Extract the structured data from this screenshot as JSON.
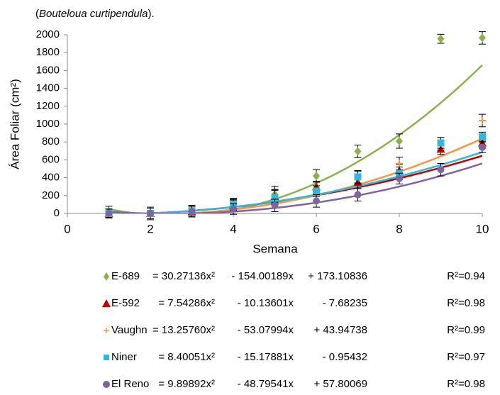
{
  "chart_data": {
    "type": "scatter",
    "subtitle_parts": [
      "(",
      "Bouteloua curtipendula",
      ")."
    ],
    "x_label": "Semana",
    "y_label": "Área Foliar (cm²)",
    "xlim": [
      0,
      10
    ],
    "xticks": [
      0,
      2,
      4,
      6,
      8,
      10
    ],
    "ylim": [
      0,
      2000
    ],
    "yticks": [
      0,
      200,
      400,
      600,
      800,
      1000,
      1200,
      1400,
      1600,
      1800,
      2000
    ],
    "x": [
      1,
      2,
      3,
      4,
      5,
      6,
      7,
      8,
      9,
      10
    ],
    "series": [
      {
        "name": "E-689",
        "color": "#8db04e",
        "marker": "diamond",
        "values": [
          20,
          0,
          20,
          100,
          215,
          420,
          695,
          810,
          1955,
          1965
        ],
        "errors": [
          60,
          70,
          60,
          70,
          90,
          70,
          70,
          80,
          50,
          70
        ],
        "fit": [
          {
            "value": 30.27136,
            "label": "= 30.27136x²"
          },
          {
            "value": -154.00189,
            "label": "- 154.00189x"
          },
          {
            "value": 173.10836,
            "label": "+ 173.10836"
          }
        ],
        "r2": {
          "value": 0.94,
          "label": "R²=0.94"
        }
      },
      {
        "name": "E-592",
        "color": "#c00000",
        "marker": "triangle",
        "values": [
          0,
          0,
          20,
          90,
          190,
          300,
          350,
          480,
          720,
          790
        ],
        "errors": [
          50,
          60,
          60,
          60,
          80,
          60,
          70,
          70,
          60,
          60
        ],
        "fit": [
          {
            "value": 7.54286,
            "label": "= 7.54286x²"
          },
          {
            "value": -10.13601,
            "label": "- 10.13601x"
          },
          {
            "value": -7.68235,
            "label": "- 7.68235"
          }
        ],
        "r2": {
          "value": 0.98,
          "label": "R²=0.98"
        }
      },
      {
        "name": "Vaughn",
        "color": "#f79646",
        "marker": "plus",
        "values": [
          0,
          0,
          20,
          90,
          180,
          250,
          400,
          560,
          780,
          1040
        ],
        "errors": [
          50,
          60,
          60,
          60,
          80,
          60,
          70,
          70,
          70,
          70
        ],
        "fit": [
          {
            "value": 13.2576,
            "label": "= 13.25760x²"
          },
          {
            "value": -53.07994,
            "label": "- 53.07994x"
          },
          {
            "value": 43.94738,
            "label": "+ 43.94738"
          }
        ],
        "r2": {
          "value": 0.99,
          "label": "R²=0.99"
        }
      },
      {
        "name": "Niner",
        "color": "#33b8d8",
        "marker": "square",
        "values": [
          0,
          0,
          30,
          100,
          180,
          250,
          410,
          450,
          790,
          860
        ],
        "errors": [
          50,
          60,
          60,
          60,
          80,
          60,
          70,
          70,
          60,
          50
        ],
        "fit": [
          {
            "value": 8.40051,
            "label": "= 8.40051x²"
          },
          {
            "value": -15.17881,
            "label": "- 15.17881x"
          },
          {
            "value": -0.95432,
            "label": "- 0.95432"
          }
        ],
        "r2": {
          "value": 0.97,
          "label": "R²=0.97"
        }
      },
      {
        "name": "El Reno",
        "color": "#8064a2",
        "marker": "circle",
        "values": [
          0,
          0,
          20,
          50,
          90,
          140,
          210,
          390,
          490,
          740
        ],
        "errors": [
          50,
          60,
          60,
          60,
          70,
          70,
          70,
          60,
          70,
          60
        ],
        "fit": [
          {
            "value": 9.89892,
            "label": "= 9.89892x²"
          },
          {
            "value": -48.79541,
            "label": "- 48.79541x"
          },
          {
            "value": 57.80069,
            "label": "+ 57.80069"
          }
        ],
        "r2": {
          "value": 0.98,
          "label": "R²=0.98"
        }
      }
    ]
  }
}
